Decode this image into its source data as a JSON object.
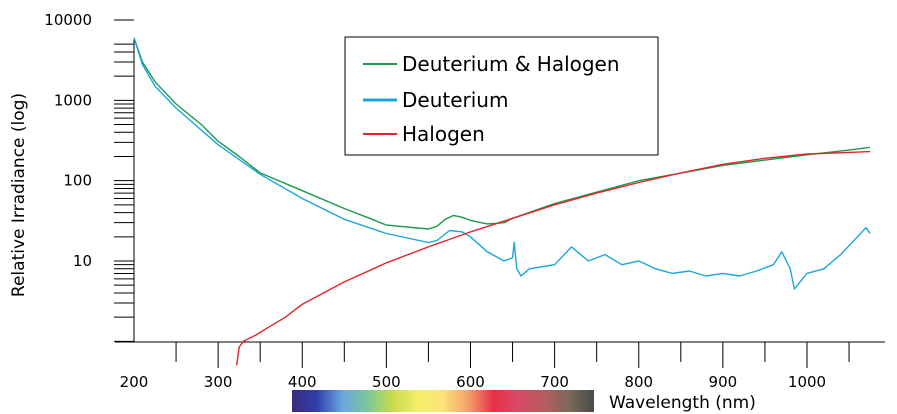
{
  "chart_data": {
    "type": "line",
    "title": "",
    "xlabel": "Wavelength (nm)",
    "ylabel": "Relative Irradiance (log)",
    "x_scale": "linear",
    "y_scale": "log",
    "xlim": [
      190,
      1100
    ],
    "ylim": [
      0.5,
      10000
    ],
    "x_ticks": [
      200,
      300,
      400,
      500,
      600,
      700,
      800,
      900,
      1000
    ],
    "x_tick_labels": [
      "200",
      "300",
      "400",
      "500",
      "600",
      "700",
      "800",
      "900",
      "1000"
    ],
    "y_ticks": [
      10,
      100,
      1000,
      10000
    ],
    "y_tick_labels": [
      "10",
      "100",
      "1000",
      "10000"
    ],
    "grid": false,
    "legend_position": "top-center",
    "series": [
      {
        "name": "Deuterium & Halogen",
        "color": "#1a9a4a",
        "x": [
          200,
          210,
          225,
          250,
          280,
          300,
          325,
          350,
          400,
          450,
          480,
          500,
          550,
          560,
          570,
          580,
          590,
          600,
          620,
          640,
          650,
          700,
          800,
          900,
          1000,
          1050,
          1075
        ],
        "y": [
          6000,
          3000,
          1700,
          900,
          500,
          310,
          200,
          125,
          75,
          45,
          34,
          28,
          25,
          27,
          33,
          37,
          35,
          32,
          29,
          30,
          34,
          52,
          100,
          155,
          210,
          240,
          260
        ]
      },
      {
        "name": "Deuterium",
        "color": "#1aa6dc",
        "x": [
          200,
          210,
          225,
          250,
          300,
          350,
          400,
          450,
          500,
          550,
          560,
          575,
          590,
          600,
          620,
          640,
          650,
          652,
          655,
          660,
          670,
          700,
          720,
          740,
          760,
          780,
          800,
          820,
          840,
          860,
          880,
          900,
          920,
          940,
          960,
          970,
          980,
          985,
          1000,
          1020,
          1040,
          1060,
          1070,
          1075
        ],
        "y": [
          6000,
          2800,
          1500,
          800,
          280,
          120,
          60,
          33,
          22,
          17,
          18,
          24,
          23,
          20,
          13,
          10,
          11,
          17,
          8,
          6.5,
          8,
          9,
          15,
          10,
          12,
          9,
          10,
          8,
          7,
          7.5,
          6.5,
          7,
          6.5,
          7.5,
          9,
          13,
          8,
          4.5,
          7,
          8,
          12,
          20,
          26,
          22
        ]
      },
      {
        "name": "Halogen",
        "color": "#e0262b",
        "x": [
          322,
          325,
          330,
          345,
          360,
          380,
          400,
          450,
          500,
          550,
          600,
          650,
          700,
          750,
          800,
          850,
          900,
          950,
          1000,
          1050,
          1075
        ],
        "y": [
          0.5,
          0.85,
          1.0,
          1.2,
          1.5,
          2.0,
          2.9,
          5.5,
          9.5,
          15,
          23,
          34,
          50,
          70,
          95,
          125,
          160,
          190,
          215,
          225,
          230
        ]
      }
    ]
  },
  "spectrum_bar": {
    "colors": [
      "#3a2a7a",
      "#2f3fae",
      "#6aa6e0",
      "#7bc89a",
      "#c8dc4a",
      "#f4ee6a",
      "#fbe47a",
      "#f6a06a",
      "#e8304a",
      "#d64a64",
      "#b85c5c",
      "#7a6a5a",
      "#4a4a4a"
    ]
  }
}
